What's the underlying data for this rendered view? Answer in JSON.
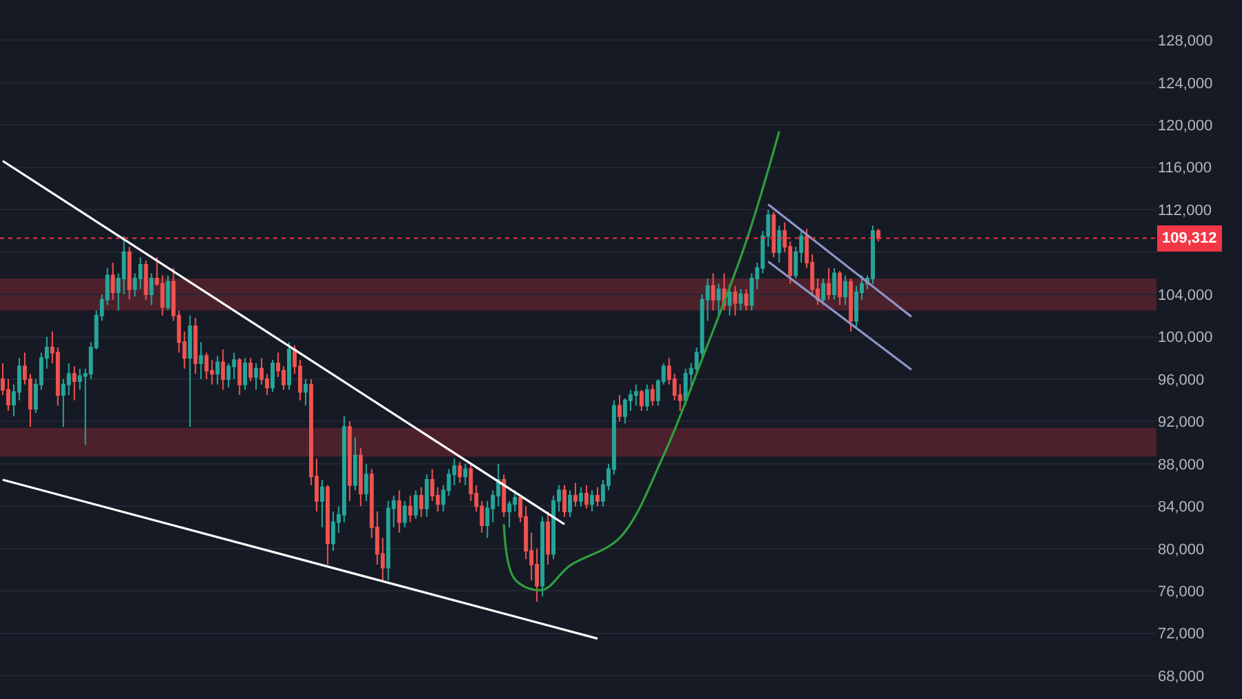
{
  "chart_data": {
    "type": "candlestick",
    "categories": [
      null,
      null,
      null,
      null,
      null,
      null,
      null,
      null,
      null,
      null,
      null,
      null,
      null,
      null,
      null,
      null,
      null,
      null,
      null,
      null,
      null,
      null,
      null,
      null,
      null,
      null,
      null,
      null,
      null,
      null,
      null,
      null,
      null,
      null,
      null,
      null,
      null,
      null,
      null,
      null,
      null,
      null,
      null,
      null,
      null,
      null,
      null,
      null,
      null,
      null,
      null,
      null,
      null,
      null,
      null,
      null,
      null,
      null,
      null,
      null,
      null,
      null,
      null,
      null,
      null,
      null,
      null,
      null,
      null,
      null,
      null,
      null,
      null,
      null,
      null,
      null,
      null,
      null,
      null,
      null,
      null,
      null,
      null,
      null,
      null,
      null,
      null,
      null,
      null,
      null,
      null,
      null,
      null,
      null,
      null,
      null,
      null,
      null,
      null,
      null,
      null,
      null,
      null,
      null,
      null,
      null,
      null,
      null,
      null,
      null,
      null,
      null,
      null,
      null,
      null,
      null,
      null,
      null,
      null,
      null,
      null,
      null,
      null,
      null,
      null,
      null,
      null,
      null,
      null,
      null,
      null,
      null,
      null,
      null,
      null,
      null,
      null,
      null,
      null,
      null,
      null,
      null,
      null,
      null,
      null,
      null,
      null,
      null,
      null,
      null,
      null,
      null,
      null,
      null,
      null,
      null,
      null,
      null,
      null,
      null,
      null,
      null,
      null,
      null,
      null,
      null,
      null,
      null,
      null,
      null,
      null,
      null,
      null,
      null,
      null,
      null,
      null,
      null,
      null,
      null,
      null,
      null,
      null,
      null,
      null,
      null,
      null,
      null,
      null,
      null,
      null,
      null,
      null,
      null,
      null,
      null,
      null,
      null,
      null,
      null,
      null,
      null,
      null,
      null,
      null,
      null,
      null,
      null,
      null,
      null
    ],
    "ohlc": [
      [
        96000,
        97500,
        94500,
        95000
      ],
      [
        95000,
        96000,
        93000,
        93600
      ],
      [
        93600,
        95500,
        92500,
        94800
      ],
      [
        94800,
        98000,
        94000,
        97200
      ],
      [
        97200,
        98500,
        95500,
        96000
      ],
      [
        96000,
        96500,
        91500,
        93200
      ],
      [
        93200,
        96000,
        92800,
        95500
      ],
      [
        95500,
        98500,
        95000,
        98000
      ],
      [
        98000,
        100000,
        97000,
        99000
      ],
      [
        99000,
        100500,
        97500,
        98500
      ],
      [
        98500,
        99000,
        93500,
        94500
      ],
      [
        94500,
        96000,
        91500,
        95500
      ],
      [
        95500,
        97500,
        94500,
        96500
      ],
      [
        96500,
        97200,
        94000,
        95800
      ],
      [
        95800,
        97000,
        95000,
        96300
      ],
      [
        96300,
        97000,
        89800,
        96500
      ],
      [
        96500,
        99500,
        96000,
        99000
      ],
      [
        99000,
        102500,
        98800,
        102000
      ],
      [
        102000,
        104000,
        101500,
        103500
      ],
      [
        103500,
        106500,
        103000,
        105800
      ],
      [
        105800,
        107000,
        103500,
        104200
      ],
      [
        104200,
        106000,
        102500,
        105500
      ],
      [
        105500,
        109500,
        104000,
        108000
      ],
      [
        108000,
        108500,
        103500,
        104500
      ],
      [
        104500,
        106000,
        103800,
        105500
      ],
      [
        105500,
        107500,
        104500,
        106800
      ],
      [
        106800,
        107200,
        103500,
        104000
      ],
      [
        104000,
        106000,
        103000,
        105500
      ],
      [
        105500,
        107500,
        104800,
        105000
      ],
      [
        105000,
        105800,
        102000,
        102800
      ],
      [
        102800,
        105800,
        102500,
        105200
      ],
      [
        105200,
        106500,
        101500,
        102000
      ],
      [
        102000,
        102500,
        98500,
        99500
      ],
      [
        99500,
        100500,
        97000,
        98000
      ],
      [
        98000,
        102000,
        91500,
        101000
      ],
      [
        101000,
        101800,
        96500,
        97500
      ],
      [
        97500,
        99500,
        96000,
        98200
      ],
      [
        98200,
        98500,
        96000,
        96800
      ],
      [
        96800,
        97800,
        95500,
        96500
      ],
      [
        96500,
        98200,
        95500,
        97600
      ],
      [
        97600,
        98800,
        95000,
        96000
      ],
      [
        96000,
        97500,
        95200,
        97200
      ],
      [
        97200,
        98500,
        96000,
        97800
      ],
      [
        97800,
        98000,
        94500,
        95500
      ],
      [
        95500,
        98000,
        95000,
        97500
      ],
      [
        97500,
        98000,
        95800,
        96200
      ],
      [
        96200,
        97500,
        95000,
        97000
      ],
      [
        97000,
        98000,
        95500,
        96000
      ],
      [
        96000,
        96500,
        94500,
        95200
      ],
      [
        95200,
        97800,
        94800,
        97500
      ],
      [
        97500,
        98500,
        96200,
        96800
      ],
      [
        96800,
        97200,
        95000,
        95500
      ],
      [
        95500,
        99500,
        95000,
        98800
      ],
      [
        98800,
        99200,
        96500,
        97200
      ],
      [
        97200,
        97800,
        94000,
        94800
      ],
      [
        94800,
        96000,
        93500,
        95500
      ],
      [
        95500,
        96000,
        86000,
        86800
      ],
      [
        86800,
        88500,
        83500,
        84500
      ],
      [
        84500,
        86500,
        82000,
        85800
      ],
      [
        85800,
        86000,
        78500,
        80500
      ],
      [
        80500,
        83500,
        79800,
        82500
      ],
      [
        82500,
        84000,
        81500,
        83200
      ],
      [
        83200,
        92500,
        82500,
        91500
      ],
      [
        91500,
        92000,
        84500,
        86000
      ],
      [
        86000,
        90500,
        85500,
        88800
      ],
      [
        88800,
        89500,
        84000,
        85200
      ],
      [
        85200,
        88000,
        84500,
        87000
      ],
      [
        87000,
        87500,
        81000,
        82000
      ],
      [
        82000,
        83500,
        78500,
        79500
      ],
      [
        79500,
        81000,
        76800,
        78200
      ],
      [
        78200,
        84500,
        77000,
        83800
      ],
      [
        83800,
        85000,
        82000,
        84500
      ],
      [
        84500,
        85500,
        81500,
        82500
      ],
      [
        82500,
        84500,
        82000,
        84000
      ],
      [
        84000,
        85000,
        82500,
        83200
      ],
      [
        83200,
        85500,
        82800,
        85000
      ],
      [
        85000,
        85800,
        83000,
        83800
      ],
      [
        83800,
        87000,
        83000,
        86500
      ],
      [
        86500,
        87500,
        84500,
        85000
      ],
      [
        85000,
        85800,
        83500,
        84200
      ],
      [
        84200,
        86000,
        83500,
        85500
      ],
      [
        85500,
        87500,
        85000,
        87000
      ],
      [
        87000,
        88500,
        86000,
        87800
      ],
      [
        87800,
        88200,
        86200,
        86800
      ],
      [
        86800,
        88000,
        86000,
        87500
      ],
      [
        87500,
        88000,
        84500,
        85200
      ],
      [
        85200,
        86000,
        83500,
        84000
      ],
      [
        84000,
        84500,
        81500,
        82200
      ],
      [
        82200,
        84500,
        81000,
        83800
      ],
      [
        83800,
        85500,
        82500,
        85000
      ],
      [
        85000,
        88000,
        84000,
        86500
      ],
      [
        86500,
        87000,
        83000,
        83500
      ],
      [
        83500,
        84500,
        82000,
        84200
      ],
      [
        84200,
        85500,
        83500,
        84800
      ],
      [
        84800,
        85000,
        82500,
        83000
      ],
      [
        83000,
        84000,
        79000,
        79800
      ],
      [
        79800,
        81500,
        77000,
        78500
      ],
      [
        78500,
        80000,
        75000,
        76500
      ],
      [
        76500,
        83000,
        75500,
        82500
      ],
      [
        82500,
        83500,
        78500,
        79500
      ],
      [
        79500,
        85000,
        79000,
        84500
      ],
      [
        84500,
        86000,
        83500,
        85500
      ],
      [
        85500,
        86000,
        83000,
        83500
      ],
      [
        83500,
        85500,
        83000,
        85000
      ],
      [
        85000,
        86200,
        84000,
        84500
      ],
      [
        84500,
        85800,
        84000,
        85200
      ],
      [
        85200,
        86000,
        83800,
        84200
      ],
      [
        84200,
        85500,
        83500,
        85000
      ],
      [
        85000,
        85800,
        84000,
        84500
      ],
      [
        84500,
        86500,
        84000,
        86000
      ],
      [
        86000,
        88000,
        85500,
        87500
      ],
      [
        87500,
        94000,
        87000,
        93500
      ],
      [
        93500,
        94500,
        92000,
        92500
      ],
      [
        92500,
        94200,
        91800,
        94000
      ],
      [
        94000,
        95000,
        93000,
        94500
      ],
      [
        94500,
        95500,
        93500,
        94800
      ],
      [
        94800,
        95000,
        93000,
        93500
      ],
      [
        93500,
        95500,
        93000,
        95000
      ],
      [
        95000,
        95500,
        93500,
        94000
      ],
      [
        94000,
        96000,
        93500,
        95800
      ],
      [
        95800,
        97500,
        95500,
        97200
      ],
      [
        97200,
        98000,
        95500,
        96000
      ],
      [
        96000,
        96500,
        94000,
        94500
      ],
      [
        94500,
        95500,
        93000,
        94000
      ],
      [
        94000,
        97000,
        93500,
        96500
      ],
      [
        96500,
        97500,
        95000,
        97000
      ],
      [
        97000,
        99000,
        96500,
        98500
      ],
      [
        98500,
        104000,
        98000,
        103500
      ],
      [
        103500,
        105500,
        101500,
        104800
      ],
      [
        104800,
        106000,
        102500,
        103500
      ],
      [
        103500,
        105000,
        102000,
        104500
      ],
      [
        104500,
        106000,
        102500,
        103000
      ],
      [
        103000,
        105000,
        102000,
        104200
      ],
      [
        104200,
        104800,
        102000,
        103200
      ],
      [
        103200,
        104500,
        102500,
        104000
      ],
      [
        104000,
        104500,
        102500,
        103000
      ],
      [
        103000,
        106000,
        102500,
        105500
      ],
      [
        105500,
        107000,
        104500,
        106500
      ],
      [
        106500,
        110000,
        106000,
        109500
      ],
      [
        109500,
        112000,
        108500,
        111500
      ],
      [
        111500,
        111800,
        107500,
        108000
      ],
      [
        108000,
        110500,
        107000,
        110000
      ],
      [
        110000,
        110800,
        108000,
        108500
      ],
      [
        108500,
        109000,
        105000,
        105800
      ],
      [
        105800,
        108500,
        105500,
        108000
      ],
      [
        108000,
        110000,
        107000,
        109500
      ],
      [
        109500,
        110200,
        106500,
        107000
      ],
      [
        107000,
        107800,
        104000,
        104500
      ],
      [
        104500,
        105500,
        103000,
        103500
      ],
      [
        103500,
        105500,
        103000,
        105000
      ],
      [
        105000,
        106500,
        103500,
        104000
      ],
      [
        104000,
        106500,
        103500,
        106000
      ],
      [
        106000,
        106200,
        103000,
        103800
      ],
      [
        103800,
        105800,
        103000,
        105200
      ],
      [
        105200,
        105500,
        100500,
        101500
      ],
      [
        101500,
        104800,
        100800,
        104200
      ],
      [
        104200,
        105800,
        103500,
        105000
      ],
      [
        105000,
        105800,
        104500,
        105500
      ],
      [
        105500,
        110500,
        105000,
        110000
      ],
      [
        110000,
        110200,
        109000,
        109312
      ],
      null,
      null,
      null,
      null,
      null,
      null,
      null,
      null,
      null,
      null,
      null,
      null,
      null,
      null,
      null,
      null,
      null,
      null,
      null,
      null,
      null,
      null,
      null,
      null,
      null,
      null,
      null,
      null,
      null,
      null,
      null,
      null,
      null,
      null,
      null,
      null,
      null,
      null,
      null,
      null,
      null,
      null,
      null,
      null,
      null,
      null,
      null,
      null,
      null,
      null
    ],
    "series": [
      {
        "type": "line",
        "color": "#ffffff",
        "values": [
          116600,
          null,
          null,
          null,
          null,
          null,
          null,
          null,
          null,
          null,
          null,
          null,
          null,
          null,
          null,
          null,
          null,
          null,
          null,
          null,
          null,
          null,
          null,
          null,
          null,
          null,
          null,
          null,
          null,
          null,
          null,
          null,
          null,
          null,
          null,
          null,
          null,
          null,
          null,
          null,
          null,
          null,
          null,
          null,
          null,
          null,
          null,
          null,
          null,
          null,
          null,
          null,
          null,
          null,
          null,
          null,
          null,
          null,
          null,
          null,
          null,
          null,
          null,
          null,
          null,
          null,
          null,
          null,
          null,
          null,
          null,
          null,
          null,
          null,
          null,
          null,
          null,
          null,
          null,
          null,
          null,
          null,
          null,
          null,
          null,
          null,
          null,
          null,
          null,
          null,
          null,
          null,
          null,
          null,
          null,
          null,
          null,
          null,
          null,
          null,
          null,
          null,
          82300,
          null,
          null,
          null,
          null,
          null,
          null,
          null,
          null,
          null,
          null,
          null,
          null,
          null,
          null,
          null,
          null,
          null,
          null,
          null,
          null,
          null,
          null,
          null,
          null,
          null,
          null,
          null,
          null,
          null,
          null,
          null,
          null,
          null,
          null,
          null,
          null,
          null,
          null,
          null,
          null,
          null,
          null,
          null,
          null,
          null,
          null,
          null,
          null,
          null,
          null,
          null,
          null,
          null,
          null,
          null,
          null,
          null,
          null,
          null,
          null,
          null,
          null,
          null,
          null,
          null,
          null,
          null,
          null,
          null,
          null,
          null,
          null,
          null,
          null,
          null,
          null,
          null,
          null,
          null,
          null,
          null,
          null,
          null,
          null,
          null,
          null,
          null,
          null,
          null,
          null,
          null,
          null,
          null,
          null,
          null,
          null,
          null,
          null,
          null,
          null,
          null,
          null,
          null,
          null,
          null,
          null,
          null
        ]
      },
      {
        "type": "line",
        "color": "#ffffff",
        "values": [
          86500,
          null,
          null,
          null,
          null,
          null,
          null,
          null,
          null,
          null,
          null,
          null,
          null,
          null,
          null,
          null,
          null,
          null,
          null,
          null,
          null,
          null,
          null,
          null,
          null,
          null,
          null,
          null,
          null,
          null,
          null,
          null,
          null,
          null,
          null,
          null,
          null,
          null,
          null,
          null,
          null,
          null,
          null,
          null,
          null,
          null,
          null,
          null,
          null,
          null,
          null,
          null,
          null,
          null,
          null,
          null,
          null,
          null,
          null,
          null,
          null,
          null,
          null,
          null,
          null,
          null,
          null,
          null,
          null,
          null,
          null,
          null,
          null,
          null,
          null,
          null,
          null,
          null,
          null,
          null,
          null,
          null,
          null,
          null,
          null,
          null,
          null,
          null,
          null,
          null,
          null,
          null,
          null,
          null,
          null,
          null,
          null,
          null,
          null,
          null,
          null,
          null,
          null,
          null,
          null,
          null,
          null,
          null,
          71500,
          null,
          null,
          null,
          null,
          null,
          null,
          null,
          null,
          null,
          null,
          null,
          null,
          null,
          null,
          null,
          null,
          null,
          null,
          null,
          null,
          null,
          null,
          null,
          null,
          null,
          null,
          null,
          null,
          null,
          null,
          null,
          null,
          null,
          null,
          null,
          null,
          null,
          null,
          null,
          null,
          null,
          null,
          null,
          null,
          null,
          null,
          null,
          null,
          null,
          null,
          null,
          null,
          null,
          null,
          null,
          null,
          null,
          null,
          null,
          null,
          null,
          null,
          null,
          null,
          null,
          null,
          null,
          null,
          null,
          null,
          null,
          null,
          null,
          null,
          null,
          null,
          null,
          null,
          null,
          null,
          null,
          null,
          null,
          null,
          null,
          null,
          null,
          null,
          null,
          null,
          null,
          null,
          null,
          null,
          null,
          null,
          null,
          null,
          null,
          null,
          null
        ]
      },
      {
        "type": "line",
        "color": "#2e9e3e",
        "values": [
          null,
          null,
          null,
          null,
          null,
          null,
          null,
          null,
          null,
          null,
          null,
          null,
          null,
          null,
          null,
          null,
          null,
          null,
          null,
          null,
          null,
          null,
          null,
          null,
          null,
          null,
          null,
          null,
          null,
          null,
          null,
          null,
          null,
          null,
          null,
          null,
          null,
          null,
          null,
          null,
          null,
          null,
          null,
          null,
          null,
          null,
          null,
          null,
          null,
          null,
          null,
          null,
          null,
          null,
          null,
          null,
          null,
          null,
          null,
          null,
          null,
          null,
          null,
          null,
          null,
          null,
          null,
          null,
          null,
          null,
          null,
          null,
          null,
          null,
          null,
          null,
          null,
          null,
          null,
          null,
          null,
          null,
          null,
          null,
          null,
          null,
          null,
          null,
          null,
          null,
          null,
          82300,
          null,
          77100,
          null,
          null,
          null,
          null,
          76100,
          null,
          null,
          null,
          null,
          78400,
          null,
          null,
          null,
          null,
          null,
          null,
          null,
          null,
          81000,
          null,
          null,
          null,
          null,
          null,
          null,
          null,
          88800,
          null,
          null,
          null,
          null,
          null,
          null,
          97900,
          null,
          null,
          null,
          null,
          null,
          null,
          null,
          109000,
          null,
          null,
          null,
          null,
          null,
          119400,
          null,
          null,
          null,
          null,
          null,
          null,
          null,
          null,
          null,
          null,
          null,
          null,
          null,
          null,
          null,
          null,
          null,
          null,
          null,
          null,
          null,
          null,
          null,
          null,
          null,
          null,
          null,
          null,
          null,
          null,
          null,
          null,
          null,
          null,
          null,
          null,
          null,
          null,
          null,
          null,
          null,
          null,
          null,
          null,
          null,
          null,
          null,
          null,
          null,
          null,
          null,
          null,
          null,
          null,
          null,
          null,
          null,
          null,
          null,
          null,
          null,
          null,
          null,
          null,
          null,
          null,
          null,
          null
        ]
      },
      {
        "type": "line",
        "color": "#8f95c9",
        "values": [
          null,
          null,
          null,
          null,
          null,
          null,
          null,
          null,
          null,
          null,
          null,
          null,
          null,
          null,
          null,
          null,
          null,
          null,
          null,
          null,
          null,
          null,
          null,
          null,
          null,
          null,
          null,
          null,
          null,
          null,
          null,
          null,
          null,
          null,
          null,
          null,
          null,
          null,
          null,
          null,
          null,
          null,
          null,
          null,
          null,
          null,
          null,
          null,
          null,
          null,
          null,
          null,
          null,
          null,
          null,
          null,
          null,
          null,
          null,
          null,
          null,
          null,
          null,
          null,
          null,
          null,
          null,
          null,
          null,
          null,
          null,
          null,
          null,
          null,
          null,
          null,
          null,
          null,
          null,
          null,
          null,
          null,
          null,
          null,
          null,
          null,
          null,
          null,
          null,
          null,
          null,
          null,
          null,
          null,
          null,
          null,
          null,
          null,
          null,
          null,
          null,
          null,
          null,
          null,
          null,
          null,
          null,
          null,
          null,
          null,
          null,
          null,
          null,
          null,
          null,
          null,
          null,
          null,
          null,
          null,
          null,
          null,
          null,
          null,
          null,
          null,
          null,
          null,
          null,
          null,
          null,
          null,
          null,
          null,
          null,
          null,
          null,
          null,
          null,
          112500,
          null,
          null,
          null,
          null,
          null,
          null,
          null,
          null,
          null,
          null,
          null,
          null,
          null,
          null,
          null,
          null,
          null,
          null,
          null,
          null,
          null,
          null,
          null,
          null,
          null,
          101900,
          null,
          null,
          null,
          null,
          null,
          null,
          null,
          null,
          null,
          null,
          null,
          null,
          null,
          null,
          null,
          null,
          null,
          null,
          null,
          null,
          null,
          null,
          null,
          null,
          null,
          null,
          null,
          null,
          null,
          null,
          null,
          null,
          null,
          null,
          null,
          null,
          null,
          null,
          null,
          null,
          null,
          null,
          null,
          null
        ]
      },
      {
        "type": "line",
        "color": "#8f95c9",
        "values": [
          null,
          null,
          null,
          null,
          null,
          null,
          null,
          null,
          null,
          null,
          null,
          null,
          null,
          null,
          null,
          null,
          null,
          null,
          null,
          null,
          null,
          null,
          null,
          null,
          null,
          null,
          null,
          null,
          null,
          null,
          null,
          null,
          null,
          null,
          null,
          null,
          null,
          null,
          null,
          null,
          null,
          null,
          null,
          null,
          null,
          null,
          null,
          null,
          null,
          null,
          null,
          null,
          null,
          null,
          null,
          null,
          null,
          null,
          null,
          null,
          null,
          null,
          null,
          null,
          null,
          null,
          null,
          null,
          null,
          null,
          null,
          null,
          null,
          null,
          null,
          null,
          null,
          null,
          null,
          null,
          null,
          null,
          null,
          null,
          null,
          null,
          null,
          null,
          null,
          null,
          null,
          null,
          null,
          null,
          null,
          null,
          null,
          null,
          null,
          null,
          null,
          null,
          null,
          null,
          null,
          null,
          null,
          null,
          null,
          null,
          null,
          null,
          null,
          null,
          null,
          null,
          null,
          null,
          null,
          null,
          null,
          null,
          null,
          null,
          null,
          null,
          null,
          null,
          null,
          null,
          null,
          null,
          null,
          null,
          null,
          null,
          null,
          null,
          null,
          107100,
          null,
          null,
          null,
          null,
          null,
          null,
          null,
          null,
          null,
          null,
          null,
          null,
          null,
          null,
          null,
          null,
          null,
          null,
          null,
          null,
          null,
          null,
          null,
          null,
          null,
          96900,
          null,
          null,
          null,
          null,
          null,
          null,
          null,
          null,
          null,
          null,
          null,
          null,
          null,
          null,
          null,
          null,
          null,
          null,
          null,
          null,
          null,
          null,
          null,
          null,
          null,
          null,
          null,
          null,
          null,
          null,
          null,
          null,
          null,
          null,
          null,
          null,
          null,
          null,
          null,
          null,
          null,
          null,
          null,
          null
        ]
      }
    ],
    "bands": [
      {
        "axis": "y",
        "from": 88700,
        "to": 91400,
        "color": "#f23645"
      },
      {
        "axis": "y",
        "from": 102500,
        "to": 105500,
        "color": "#f23645"
      }
    ],
    "ref_lines": [
      {
        "axis": "y",
        "value": 109312,
        "label": "109,312",
        "color": "#f23645",
        "line_style": "dotted"
      }
    ],
    "ylim": [
      65800,
      131800
    ],
    "yticks": [
      {
        "value": 68000,
        "label": "68,000"
      },
      {
        "value": 72000,
        "label": "72,000"
      },
      {
        "value": 76000,
        "label": "76,000"
      },
      {
        "value": 80000,
        "label": "80,000"
      },
      {
        "value": 84000,
        "label": "84,000"
      },
      {
        "value": 88000,
        "label": "88,000"
      },
      {
        "value": 92000,
        "label": "92,000"
      },
      {
        "value": 96000,
        "label": "96,000"
      },
      {
        "value": 100000,
        "label": "100,000"
      },
      {
        "value": 104000,
        "label": "104,000"
      },
      {
        "value": 108000,
        "label": null
      },
      {
        "value": 112000,
        "label": "112,000"
      },
      {
        "value": 116000,
        "label": "116,000"
      },
      {
        "value": 120000,
        "label": "120,000"
      },
      {
        "value": 124000,
        "label": "124,000"
      },
      {
        "value": 128000,
        "label": "128,000"
      }
    ],
    "grid": true,
    "tick_labels": "y",
    "line_style": "solid"
  }
}
